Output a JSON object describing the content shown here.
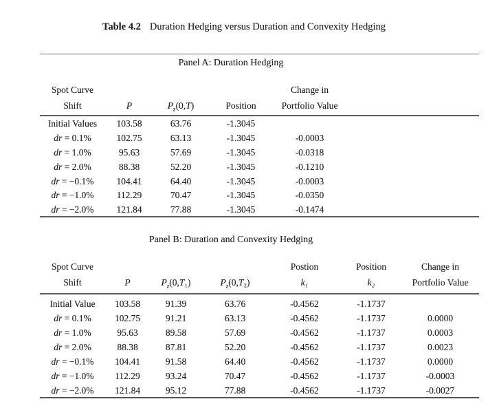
{
  "page": {
    "background_color": "#ffffff",
    "text_color": "#1e1e1e",
    "rule_color": "#5c5c5c"
  },
  "title": {
    "label": "Table 4.2",
    "text": "Duration Hedging versus Duration and Convexity Hedging"
  },
  "panel_a": {
    "label": "Panel A: Duration Hedging",
    "header": {
      "col1_l1": "Spot Curve",
      "col1_l2": "Shift",
      "p": "P",
      "pz": {
        "p": "P",
        "z": "z",
        "o": "(0,",
        "t": "T",
        "c": ")"
      },
      "position": "Position",
      "change_l1": "Change in",
      "change_l2": "Portfolio Value"
    },
    "rows": [
      {
        "it": "",
        "tx": "Initial Values",
        "values": [
          "103.58",
          "63.76",
          "-1.3045",
          ""
        ]
      },
      {
        "it": "dr",
        "tx": " = 0.1%",
        "values": [
          "102.75",
          "63.13",
          "-1.3045",
          "-0.0003"
        ]
      },
      {
        "it": "dr",
        "tx": " = 1.0%",
        "values": [
          "95.63",
          "57.69",
          "-1.3045",
          "-0.0318"
        ]
      },
      {
        "it": "dr",
        "tx": " = 2.0%",
        "values": [
          "88.38",
          "52.20",
          "-1.3045",
          "-0.1210"
        ]
      },
      {
        "it": "dr",
        "tx": " = −0.1%",
        "values": [
          "104.41",
          "64.40",
          "-1.3045",
          "-0.0003"
        ]
      },
      {
        "it": "dr",
        "tx": " = −1.0%",
        "values": [
          "112.29",
          "70.47",
          "-1.3045",
          "-0.0350"
        ]
      },
      {
        "it": "dr",
        "tx": " = −2.0%",
        "values": [
          "121.84",
          "77.88",
          "-1.3045",
          "-0.1474"
        ]
      }
    ]
  },
  "panel_b": {
    "label": "Panel B: Duration and Convexity Hedging",
    "header": {
      "col1_l1": "Spot Curve",
      "col1_l2": "Shift",
      "p": "P",
      "pz1": {
        "p": "P",
        "z": "z",
        "o": "(0,",
        "t": "T",
        "c": "₁)"
      },
      "pz2": {
        "p": "P",
        "z": "z",
        "o": "(0,",
        "t": "T",
        "c": "₂)"
      },
      "pos1_l1": "Postion",
      "pos1_l2": "k₁",
      "pos2_l1": "Position",
      "pos2_l2": "k₂",
      "change_l1": "Change in",
      "change_l2": "Portfolio Value"
    },
    "rows": [
      {
        "it": "",
        "tx": "Initial Value",
        "values": [
          "103.58",
          "91.39",
          "63.76",
          "-0.4562",
          "-1.1737",
          ""
        ]
      },
      {
        "it": "dr",
        "tx": " = 0.1%",
        "values": [
          "102.75",
          "91.21",
          "63.13",
          "-0.4562",
          "-1.1737",
          "0.0000"
        ]
      },
      {
        "it": "dr",
        "tx": " = 1.0%",
        "values": [
          "95.63",
          "89.58",
          "57.69",
          "-0.4562",
          "-1.1737",
          "0.0003"
        ]
      },
      {
        "it": "dr",
        "tx": " = 2.0%",
        "values": [
          "88.38",
          "87.81",
          "52.20",
          "-0.4562",
          "-1.1737",
          "0.0023"
        ]
      },
      {
        "it": "dr",
        "tx": " = −0.1%",
        "values": [
          "104.41",
          "91.58",
          "64.40",
          "-0.4562",
          "-1.1737",
          "0.0000"
        ]
      },
      {
        "it": "dr",
        "tx": " = −1.0%",
        "values": [
          "112.29",
          "93.24",
          "70.47",
          "-0.4562",
          "-1.1737",
          "-0.0003"
        ]
      },
      {
        "it": "dr",
        "tx": " = −2.0%",
        "values": [
          "121.84",
          "95.12",
          "77.88",
          "-0.4562",
          "-1.1737",
          "-0.0027"
        ]
      }
    ]
  }
}
